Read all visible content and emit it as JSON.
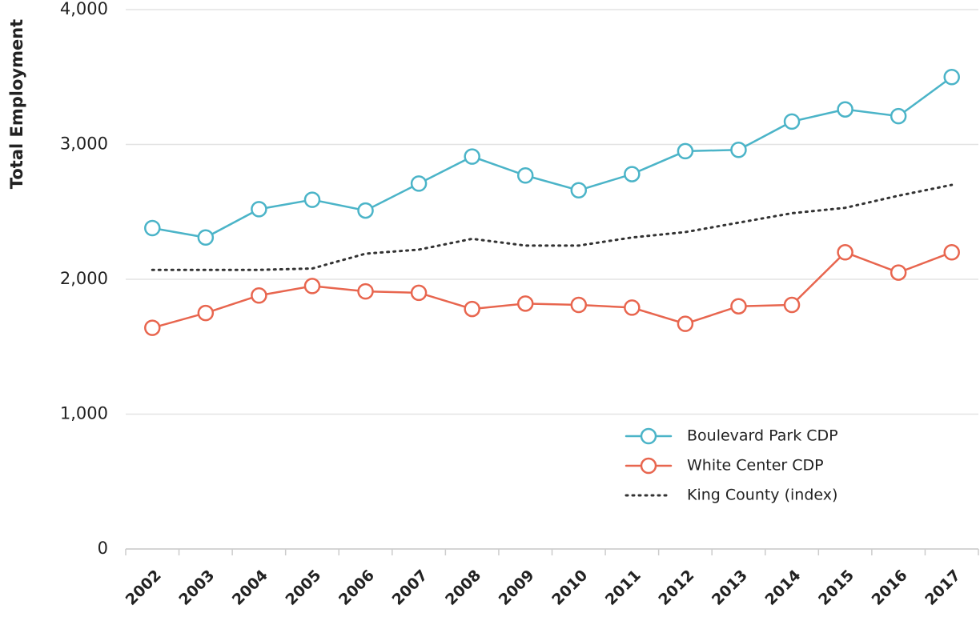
{
  "chart_data": {
    "type": "line",
    "y_label": "Total Employment",
    "categories": [
      "2002",
      "2003",
      "2004",
      "2005",
      "2006",
      "2007",
      "2008",
      "2009",
      "2010",
      "2011",
      "2012",
      "2013",
      "2014",
      "2015",
      "2016",
      "2017"
    ],
    "series": [
      {
        "name": "Boulevard Park CDP",
        "color": "#4bb4c8",
        "marker": "circle",
        "dash": "solid",
        "values": [
          2380,
          2310,
          2520,
          2590,
          2510,
          2710,
          2910,
          2770,
          2660,
          2780,
          2950,
          2960,
          3170,
          3260,
          3210,
          3500
        ]
      },
      {
        "name": "White Center CDP",
        "color": "#e8664f",
        "marker": "circle",
        "dash": "solid",
        "values": [
          1640,
          1750,
          1880,
          1950,
          1910,
          1900,
          1780,
          1820,
          1810,
          1790,
          1670,
          1800,
          1810,
          2200,
          2050,
          2200
        ]
      },
      {
        "name": "King County (index)",
        "color": "#333333",
        "marker": "none",
        "dash": "dotted",
        "values": [
          2070,
          2070,
          2070,
          2080,
          2190,
          2220,
          2300,
          2250,
          2250,
          2310,
          2350,
          2420,
          2490,
          2530,
          2620,
          2700
        ]
      }
    ],
    "ylim": [
      0,
      4000
    ],
    "yticks": [
      0,
      {
        "value": 1000,
        "label": "1,000"
      },
      {
        "value": 2000,
        "label": "2,000"
      },
      {
        "value": 3000,
        "label": "3,000"
      },
      {
        "value": 4000,
        "label": "4,000"
      }
    ],
    "grid": true,
    "legend": "lower right"
  }
}
